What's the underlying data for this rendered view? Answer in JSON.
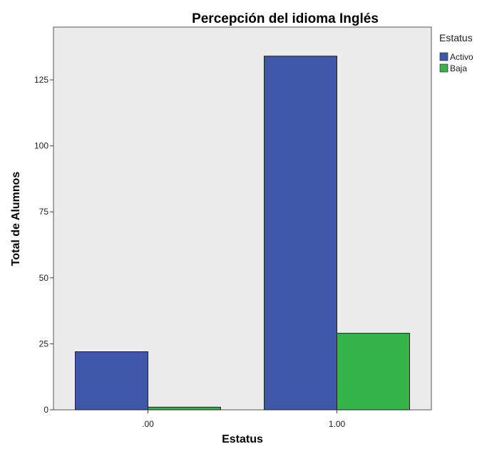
{
  "chart_data": {
    "type": "bar",
    "title": "Percepción del idioma Inglés",
    "xlabel": "Estatus",
    "ylabel": "Total de Alumnos",
    "categories": [
      ".00",
      "1.00"
    ],
    "series": [
      {
        "name": "Activo",
        "values": [
          22,
          134
        ],
        "color": "#3f57a8"
      },
      {
        "name": "Baja",
        "values": [
          1,
          29
        ],
        "color": "#35b44a"
      }
    ],
    "ylim": [
      0,
      145
    ],
    "yticks": [
      0,
      25,
      50,
      75,
      100,
      125
    ],
    "legend": {
      "title": "Estatus",
      "placement": "right-top"
    },
    "grid": false,
    "plot_background": "#ececec"
  }
}
